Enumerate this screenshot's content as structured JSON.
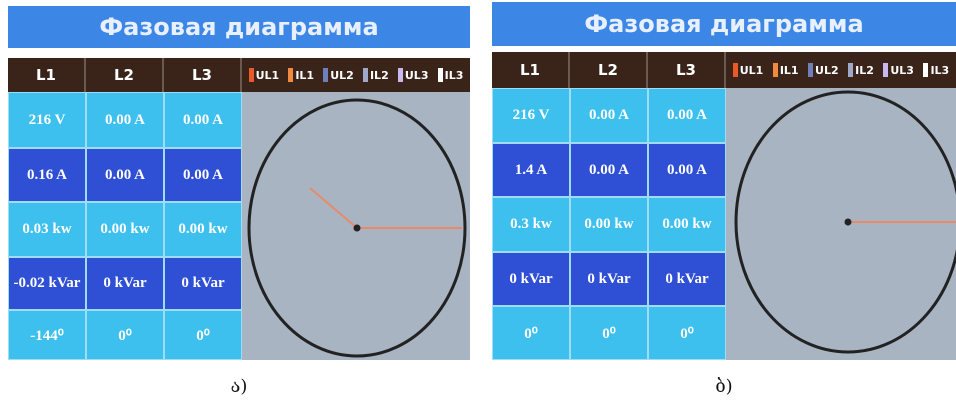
{
  "panels": [
    {
      "title": "Фазовая диаграмма",
      "columns": [
        "L1",
        "L2",
        "L3"
      ],
      "legend": [
        "UL1",
        "IL1",
        "UL2",
        "IL2",
        "UL3",
        "IL3"
      ],
      "rows": [
        [
          "216 V",
          "0.00 A",
          "0.00 A"
        ],
        [
          "0.16 A",
          "0.00 A",
          "0.00 A"
        ],
        [
          "0.03 kw",
          "0.00 kw",
          "0.00 kw"
        ],
        [
          "-0.02 kVar",
          "0 kVar",
          "0 kVar"
        ],
        [
          "-144⁰",
          "0⁰",
          "0⁰"
        ]
      ],
      "caption": "ა)"
    },
    {
      "title": "Фазовая диаграмма",
      "columns": [
        "L1",
        "L2",
        "L3"
      ],
      "legend": [
        "UL1",
        "IL1",
        "UL2",
        "IL2",
        "UL3",
        "IL3"
      ],
      "rows": [
        [
          "216 V",
          "0.00 A",
          "0.00 A"
        ],
        [
          "1.4 A",
          "0.00 A",
          "0.00 A"
        ],
        [
          "0.3 kw",
          "0.00 kw",
          "0.00 kw"
        ],
        [
          "0 kVar",
          "0 kVar",
          "0 kVar"
        ],
        [
          "0⁰",
          "0⁰",
          "0⁰"
        ]
      ],
      "caption": "ბ)"
    }
  ]
}
